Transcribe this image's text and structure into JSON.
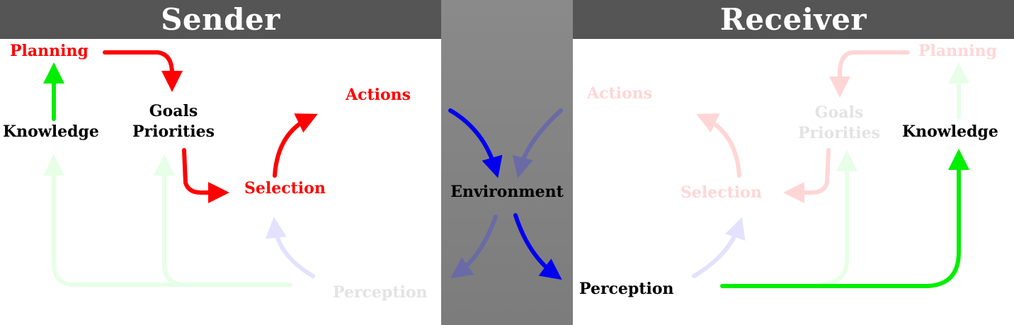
{
  "sender": {
    "title": "Sender",
    "planning": "Planning",
    "knowledge": "Knowledge",
    "goals": "Goals",
    "priorities": "Priorities",
    "actions": "Actions",
    "selection": "Selection",
    "perception": "Perception"
  },
  "environment": {
    "label": "Environment"
  },
  "receiver": {
    "title": "Receiver",
    "planning": "Planning",
    "knowledge": "Knowledge",
    "goals": "Goals",
    "priorities": "Priorities",
    "actions": "Actions",
    "selection": "Selection",
    "perception": "Perception"
  },
  "colors": {
    "header_bg": "#555555",
    "environment_bg": "#808080",
    "active_red": "#ff0000",
    "active_green": "#00ee00",
    "active_blue": "#0000ee",
    "faded_red": "#ffd6d6",
    "faded_green": "#e6ffe6",
    "faded_blue": "#e0e0ff"
  }
}
